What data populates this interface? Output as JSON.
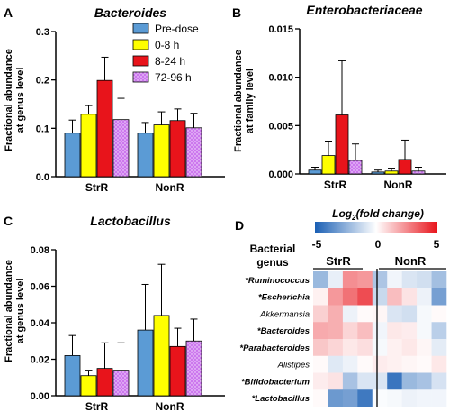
{
  "colors": {
    "Pre-dose": "#5b9bd5",
    "0-8 h": "#ffff00",
    "8-24 h": "#e8141b",
    "72-96 h": "#cc77ee",
    "heat_low": "#1a5fb4",
    "heat_mid": "#ffffff",
    "heat_high": "#e8141b"
  },
  "chart_data": [
    {
      "panel": "A",
      "type": "bar",
      "title": "Bacteroides",
      "ylabel_lines": [
        "Fractional abundance",
        "at genus level"
      ],
      "categories": [
        "StrR",
        "NonR"
      ],
      "ylim": [
        0,
        0.3
      ],
      "yticks": [
        0.0,
        0.1,
        0.2,
        0.3
      ],
      "yticklabels": [
        "0.0",
        "0.1",
        "0.2",
        "0.3"
      ],
      "legend": [
        "Pre-dose",
        "0-8 h",
        "8-24 h",
        "72-96 h"
      ],
      "series": [
        {
          "name": "Pre-dose",
          "values": [
            0.09,
            0.09
          ],
          "err": [
            0.027,
            0.022
          ]
        },
        {
          "name": "0-8 h",
          "values": [
            0.129,
            0.107
          ],
          "err": [
            0.018,
            0.027
          ]
        },
        {
          "name": "8-24 h",
          "values": [
            0.199,
            0.116
          ],
          "err": [
            0.048,
            0.024
          ]
        },
        {
          "name": "72-96 h",
          "values": [
            0.118,
            0.101
          ],
          "err": [
            0.044,
            0.03
          ]
        }
      ]
    },
    {
      "panel": "B",
      "type": "bar",
      "title": "Enterobacteriaceae",
      "ylabel_lines": [
        "Fractional abundance",
        "at family level"
      ],
      "categories": [
        "StrR",
        "NonR"
      ],
      "ylim": [
        0,
        0.015
      ],
      "yticks": [
        0.0,
        0.005,
        0.01,
        0.015
      ],
      "yticklabels": [
        "0.000",
        "0.005",
        "0.010",
        "0.015"
      ],
      "series": [
        {
          "name": "Pre-dose",
          "values": [
            0.0004,
            0.0002
          ],
          "err": [
            0.0003,
            0.0002
          ]
        },
        {
          "name": "0-8 h",
          "values": [
            0.0019,
            0.0003
          ],
          "err": [
            0.0015,
            0.0003
          ]
        },
        {
          "name": "8-24 h",
          "values": [
            0.0061,
            0.0015
          ],
          "err": [
            0.0056,
            0.002
          ]
        },
        {
          "name": "72-96 h",
          "values": [
            0.0014,
            0.0003
          ],
          "err": [
            0.0017,
            0.0004
          ]
        }
      ]
    },
    {
      "panel": "C",
      "type": "bar",
      "title": "Lactobacillus",
      "ylabel_lines": [
        "Fractional abundance",
        "at genus level"
      ],
      "categories": [
        "StrR",
        "NonR"
      ],
      "ylim": [
        0,
        0.08
      ],
      "yticks": [
        0.0,
        0.02,
        0.04,
        0.06,
        0.08
      ],
      "yticklabels": [
        "0.00",
        "0.02",
        "0.04",
        "0.06",
        "0.08"
      ],
      "series": [
        {
          "name": "Pre-dose",
          "values": [
            0.022,
            0.036
          ],
          "err": [
            0.011,
            0.025
          ]
        },
        {
          "name": "0-8 h",
          "values": [
            0.011,
            0.044
          ],
          "err": [
            0.003,
            0.028
          ]
        },
        {
          "name": "8-24 h",
          "values": [
            0.015,
            0.027
          ],
          "err": [
            0.014,
            0.01
          ]
        },
        {
          "name": "72-96 h",
          "values": [
            0.014,
            0.03
          ],
          "err": [
            0.015,
            0.012
          ]
        }
      ]
    },
    {
      "panel": "D",
      "type": "heatmap",
      "colorbar_title": "Log2(fold change)",
      "colorbar_title_parts": [
        "Log",
        "2",
        "(fold change)"
      ],
      "colorbar_range": [
        -5,
        5
      ],
      "colorbar_ticks": [
        "-5",
        "0",
        "5"
      ],
      "row_header_lines": [
        "Bacterial",
        "genus"
      ],
      "groups": [
        "StrR",
        "NonR"
      ],
      "rows": [
        "*Ruminococcus",
        "*Escherichia",
        "Akkermansia",
        "*Bacteroides",
        "*Parabacteroides",
        "Alistipes",
        "*Bifidobacterium",
        "*Lactobacillus"
      ],
      "row_bold": [
        true,
        true,
        false,
        true,
        true,
        false,
        true,
        true
      ],
      "values": [
        [
          -2.2,
          -0.5,
          2.4,
          2.2,
          -1.8,
          -0.3,
          -0.8,
          -1.0,
          -2.0
        ],
        [
          0.3,
          2.2,
          3.0,
          3.8,
          -1.2,
          1.4,
          0.6,
          -0.4,
          -3.0
        ],
        [
          1.0,
          1.7,
          -0.4,
          0.1,
          0.2,
          -0.8,
          -1.0,
          -0.2,
          0.1
        ],
        [
          1.8,
          1.7,
          0.9,
          1.4,
          -0.3,
          0.5,
          0.4,
          -0.2,
          -1.5
        ],
        [
          1.2,
          0.9,
          0.5,
          0.7,
          -0.2,
          0.3,
          0.5,
          0.2,
          -0.6
        ],
        [
          0.1,
          -0.7,
          -0.4,
          0.1,
          0.4,
          0.3,
          0.2,
          0.1,
          0.5
        ],
        [
          0.4,
          0.6,
          -1.9,
          -0.8,
          -0.8,
          -4.3,
          -2.2,
          -1.9,
          -0.9
        ],
        [
          0.1,
          -3.2,
          -3.0,
          -4.2,
          -0.1,
          -0.2,
          -0.4,
          -0.3,
          -0.3
        ]
      ]
    }
  ]
}
